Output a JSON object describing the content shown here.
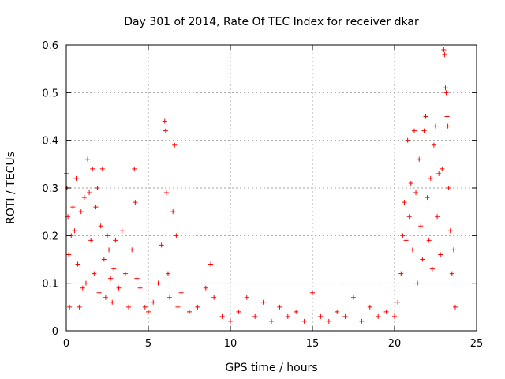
{
  "chart_data": {
    "type": "scatter",
    "title": "Day 301 of 2014, Rate Of TEC Index for receiver dkar",
    "xlabel": "GPS time / hours",
    "ylabel": "ROTI / TECUs",
    "xlim": [
      0,
      25
    ],
    "ylim": [
      0,
      0.6
    ],
    "xticks": [
      0,
      5,
      10,
      15,
      20,
      25
    ],
    "yticks": [
      0,
      0.1,
      0.2,
      0.3,
      0.4,
      0.5,
      0.6
    ],
    "xtick_labels": [
      "0",
      "5",
      "10",
      "15",
      "20",
      "25"
    ],
    "ytick_labels": [
      "0",
      "0.1",
      "0.2",
      "0.3",
      "0.4",
      "0.5",
      "0.6"
    ],
    "grid": true,
    "marker": "+",
    "series": [
      {
        "name": "ROTI",
        "color": "#ff0000",
        "points": [
          [
            0.0,
            0.33
          ],
          [
            0.05,
            0.3
          ],
          [
            0.1,
            0.24
          ],
          [
            0.15,
            0.16
          ],
          [
            0.2,
            0.05
          ],
          [
            0.3,
            0.2
          ],
          [
            0.4,
            0.26
          ],
          [
            0.5,
            0.21
          ],
          [
            0.6,
            0.32
          ],
          [
            0.7,
            0.14
          ],
          [
            0.8,
            0.05
          ],
          [
            0.9,
            0.25
          ],
          [
            1.0,
            0.09
          ],
          [
            1.1,
            0.28
          ],
          [
            1.2,
            0.1
          ],
          [
            1.3,
            0.36
          ],
          [
            1.4,
            0.29
          ],
          [
            1.5,
            0.19
          ],
          [
            1.6,
            0.34
          ],
          [
            1.7,
            0.12
          ],
          [
            1.8,
            0.26
          ],
          [
            1.9,
            0.3
          ],
          [
            2.0,
            0.08
          ],
          [
            2.1,
            0.22
          ],
          [
            2.2,
            0.34
          ],
          [
            2.3,
            0.15
          ],
          [
            2.4,
            0.07
          ],
          [
            2.5,
            0.2
          ],
          [
            2.6,
            0.17
          ],
          [
            2.7,
            0.11
          ],
          [
            2.8,
            0.06
          ],
          [
            2.9,
            0.13
          ],
          [
            3.0,
            0.19
          ],
          [
            3.2,
            0.09
          ],
          [
            3.4,
            0.21
          ],
          [
            3.6,
            0.12
          ],
          [
            3.8,
            0.05
          ],
          [
            4.0,
            0.17
          ],
          [
            4.15,
            0.34
          ],
          [
            4.2,
            0.27
          ],
          [
            4.3,
            0.11
          ],
          [
            4.5,
            0.09
          ],
          [
            4.8,
            0.05
          ],
          [
            5.0,
            0.04
          ],
          [
            5.3,
            0.06
          ],
          [
            5.6,
            0.1
          ],
          [
            5.8,
            0.18
          ],
          [
            6.0,
            0.44
          ],
          [
            6.05,
            0.42
          ],
          [
            6.1,
            0.29
          ],
          [
            6.2,
            0.12
          ],
          [
            6.3,
            0.07
          ],
          [
            6.5,
            0.25
          ],
          [
            6.6,
            0.39
          ],
          [
            6.7,
            0.2
          ],
          [
            6.8,
            0.05
          ],
          [
            7.0,
            0.08
          ],
          [
            7.5,
            0.04
          ],
          [
            8.0,
            0.05
          ],
          [
            8.5,
            0.09
          ],
          [
            8.8,
            0.14
          ],
          [
            9.0,
            0.07
          ],
          [
            9.5,
            0.03
          ],
          [
            10.0,
            0.02
          ],
          [
            10.5,
            0.04
          ],
          [
            11.0,
            0.07
          ],
          [
            11.5,
            0.03
          ],
          [
            12.0,
            0.06
          ],
          [
            12.5,
            0.02
          ],
          [
            13.0,
            0.05
          ],
          [
            13.5,
            0.03
          ],
          [
            14.0,
            0.04
          ],
          [
            14.5,
            0.02
          ],
          [
            15.0,
            0.08
          ],
          [
            15.5,
            0.03
          ],
          [
            16.0,
            0.02
          ],
          [
            16.5,
            0.04
          ],
          [
            17.0,
            0.03
          ],
          [
            17.5,
            0.07
          ],
          [
            18.0,
            0.02
          ],
          [
            18.5,
            0.05
          ],
          [
            19.0,
            0.03
          ],
          [
            19.5,
            0.04
          ],
          [
            20.0,
            0.03
          ],
          [
            20.2,
            0.06
          ],
          [
            20.4,
            0.12
          ],
          [
            20.5,
            0.2
          ],
          [
            20.6,
            0.27
          ],
          [
            20.7,
            0.19
          ],
          [
            20.8,
            0.4
          ],
          [
            20.9,
            0.24
          ],
          [
            21.0,
            0.31
          ],
          [
            21.1,
            0.17
          ],
          [
            21.2,
            0.42
          ],
          [
            21.3,
            0.29
          ],
          [
            21.4,
            0.1
          ],
          [
            21.5,
            0.36
          ],
          [
            21.6,
            0.22
          ],
          [
            21.7,
            0.15
          ],
          [
            21.8,
            0.42
          ],
          [
            21.9,
            0.45
          ],
          [
            22.0,
            0.28
          ],
          [
            22.1,
            0.19
          ],
          [
            22.2,
            0.32
          ],
          [
            22.3,
            0.13
          ],
          [
            22.4,
            0.39
          ],
          [
            22.5,
            0.43
          ],
          [
            22.6,
            0.24
          ],
          [
            22.7,
            0.33
          ],
          [
            22.8,
            0.16
          ],
          [
            22.9,
            0.34
          ],
          [
            23.0,
            0.59
          ],
          [
            23.05,
            0.58
          ],
          [
            23.1,
            0.51
          ],
          [
            23.15,
            0.5
          ],
          [
            23.2,
            0.45
          ],
          [
            23.25,
            0.43
          ],
          [
            23.3,
            0.3
          ],
          [
            23.4,
            0.21
          ],
          [
            23.5,
            0.12
          ],
          [
            23.6,
            0.17
          ],
          [
            23.7,
            0.05
          ]
        ]
      }
    ]
  }
}
